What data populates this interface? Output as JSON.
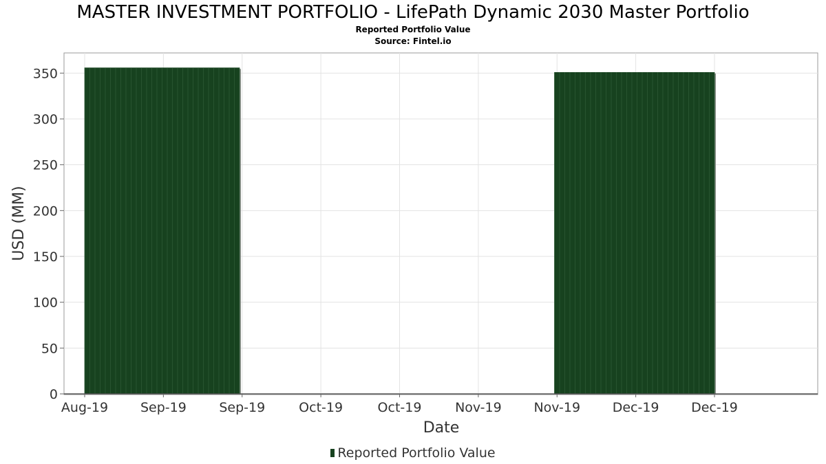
{
  "chart_data": {
    "type": "bar",
    "title": "MASTER INVESTMENT PORTFOLIO - LifePath Dynamic 2030 Master Portfolio",
    "subtitle": "Reported Portfolio Value",
    "source": "Source: Fintel.io",
    "xlabel": "Date",
    "ylabel": "USD (MM)",
    "x_ticks": [
      "Aug-19",
      "Sep-19",
      "Sep-19",
      "Oct-19",
      "Oct-19",
      "Nov-19",
      "Nov-19",
      "Dec-19",
      "Dec-19"
    ],
    "y_ticks": [
      "0",
      "50",
      "100",
      "150",
      "200",
      "250",
      "300",
      "350"
    ],
    "ylim": [
      0,
      372
    ],
    "grid": true,
    "legend_position": "bottom-center",
    "series": [
      {
        "name": "Reported Portfolio Value",
        "color": "#17421f",
        "points": [
          {
            "start": "2019-08-31",
            "end": "2019-09-30",
            "value": 356
          },
          {
            "start": "2019-11-30",
            "end": "2019-12-31",
            "value": 351
          }
        ]
      }
    ]
  }
}
